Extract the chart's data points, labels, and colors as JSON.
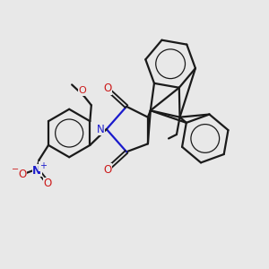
{
  "bg_color": "#e8e8e8",
  "line_color": "#1a1a1a",
  "bond_lw": 1.6,
  "N_color": "#1a1acc",
  "O_color": "#cc1a1a",
  "figsize": [
    3.0,
    3.0
  ],
  "dpi": 100,
  "xlim": [
    0,
    10
  ],
  "ylim": [
    0,
    10
  ]
}
